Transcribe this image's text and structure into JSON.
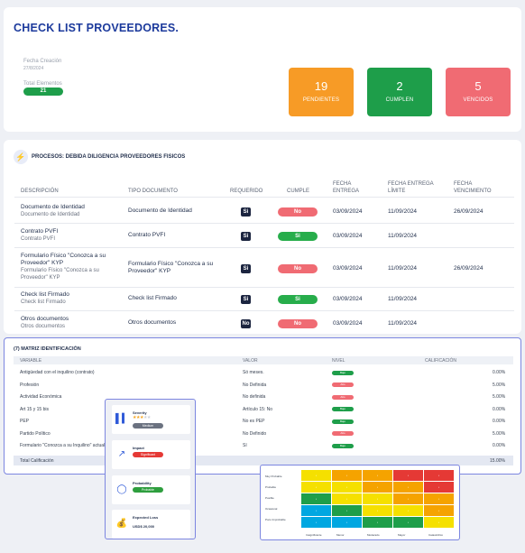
{
  "header": {
    "title": "CHECK LIST PROVEEDORES.",
    "fecha_label": "Fecha Creación",
    "fecha_value": "27/8/2024",
    "total_label": "Total Elementos",
    "total_value": "21"
  },
  "stats": [
    {
      "number": "19",
      "label": "PENDIENTES",
      "color": "#f79b26"
    },
    {
      "number": "2",
      "label": "CUMPLEN",
      "color": "#1e9e4a"
    },
    {
      "number": "5",
      "label": "VENCIDOS",
      "color": "#f06b73"
    }
  ],
  "process": {
    "title": "PROCESOS: DEBIDA DILIGENCIA PROVEEDORES FISICOS",
    "icon": "lightning-icon",
    "columns": {
      "descripcion": "DESCRIPCIÓN",
      "tipo": "TIPO DOCUMENTO",
      "requerido": "REQUERIDO",
      "cumple": "CUMPLE",
      "entrega_1": "FECHA",
      "entrega_2": "ENTREGA",
      "limite_1": "FECHA ENTREGA",
      "limite_2": "LÍMITE",
      "venc_1": "FECHA",
      "venc_2": "VENCIMIENTO"
    },
    "rows": [
      {
        "title": "Documento de Identidad",
        "subtitle": "Documento de Identidad",
        "tipo": "Documento de Identidad",
        "requerido": "Si",
        "cumple": "No",
        "entrega": "03/09/2024",
        "limite": "11/09/2024",
        "vencimiento": "26/09/2024"
      },
      {
        "title": "Contrato PVFI",
        "subtitle": "Contrato PVFI",
        "tipo": "Contrato PVFI",
        "requerido": "Si",
        "cumple": "Si",
        "entrega": "03/09/2024",
        "limite": "11/09/2024",
        "vencimiento": ""
      },
      {
        "title": "Formulario Físico \"Conozca a su Proveedor\" KYP",
        "subtitle": "Formulario Físico \"Conozca a su Proveedor\" KYP",
        "tipo": "Formulario Físico \"Conozca a su Proveedor\" KYP",
        "requerido": "Si",
        "cumple": "No",
        "entrega": "03/09/2024",
        "limite": "11/09/2024",
        "vencimiento": "26/09/2024"
      },
      {
        "title": "Check list Firmado",
        "subtitle": "Check list Firmado",
        "tipo": "Check list Firmado",
        "requerido": "Si",
        "cumple": "Si",
        "entrega": "03/09/2024",
        "limite": "11/09/2024",
        "vencimiento": ""
      },
      {
        "title": "Otros documentos",
        "subtitle": "Otros documentos",
        "tipo": "Otros documentos",
        "requerido": "No",
        "cumple": "No",
        "entrega": "03/09/2024",
        "limite": "11/09/2024",
        "vencimiento": ""
      }
    ]
  },
  "matrix": {
    "title": "(7) MATRIZ IDENTIFICACIÓN",
    "columns": {
      "variable": "VARIABLE",
      "valor": "VALOR",
      "nivel": "NIVEL",
      "calificacion": "CALIFICACIÓN"
    },
    "rows": [
      {
        "variable": "Antigüedad con el inquilino (contrato)",
        "valor": "Só meses.",
        "nivel": "Bajo",
        "calificacion": "0.00%"
      },
      {
        "variable": "Profesión",
        "valor": "No Definida",
        "nivel": "Alto",
        "calificacion": "5.00%"
      },
      {
        "variable": "Actividad Económica",
        "valor": "No definida",
        "nivel": "Alto",
        "calificacion": "5.00%"
      },
      {
        "variable": "Art 15 y 15 bis",
        "valor": "Artículo 15: No",
        "nivel": "Bajo",
        "calificacion": "0.00%"
      },
      {
        "variable": "PEP",
        "valor": "No es PEP",
        "nivel": "Bajo",
        "calificacion": "0.00%"
      },
      {
        "variable": "Partido Político",
        "valor": "No Definido",
        "nivel": "Alto",
        "calificacion": "5.00%"
      },
      {
        "variable": "Formulario \"Conozca a su Inquilino\" actualizado",
        "valor": "Sí",
        "nivel": "Bajo",
        "calificacion": "0.00%"
      }
    ],
    "total_label": "Total Calificación",
    "total_value": "15.00%",
    "nivel_colors": {
      "Bajo": "#1e9e4a",
      "Alto": "#f06b73"
    }
  },
  "risk": {
    "items": [
      {
        "title": "Severity",
        "icon": "bar-chart-icon",
        "badge": "Medium",
        "badge_color": "#6b7280",
        "stars": 3,
        "stars_max": 5
      },
      {
        "title": "Impact",
        "icon": "trend-line-icon",
        "badge": "Significant",
        "badge_color": "#e53935"
      },
      {
        "title": "Probability",
        "icon": "donut-icon",
        "badge": "Probable",
        "badge_color": "#2e9e3e"
      },
      {
        "title": "Expected Loss",
        "icon": "money-bag-icon",
        "amount": "USD$ 20,000"
      }
    ]
  },
  "heatmap": {
    "rows": [
      "Muy Probable",
      "Probable",
      "Posible",
      "Ocasional",
      "Poco Improbable"
    ],
    "cols": [
      "Insignificante",
      "Menor",
      "Moderado",
      "Mayor",
      "Catastrófico"
    ],
    "cells": [
      [
        "#f5e000",
        "#f5a300",
        "#f5a300",
        "#e53935",
        "#e53935"
      ],
      [
        "#f5e000",
        "#f5e000",
        "#f5a300",
        "#f5a300",
        "#e53935"
      ],
      [
        "#1e9e4a",
        "#f5e000",
        "#f5e000",
        "#f5a300",
        "#f5a300"
      ],
      [
        "#00a7e1",
        "#1e9e4a",
        "#f5e000",
        "#f5e000",
        "#f5a300"
      ],
      [
        "#00a7e1",
        "#00a7e1",
        "#1e9e4a",
        "#1e9e4a",
        "#f5e000"
      ]
    ]
  }
}
